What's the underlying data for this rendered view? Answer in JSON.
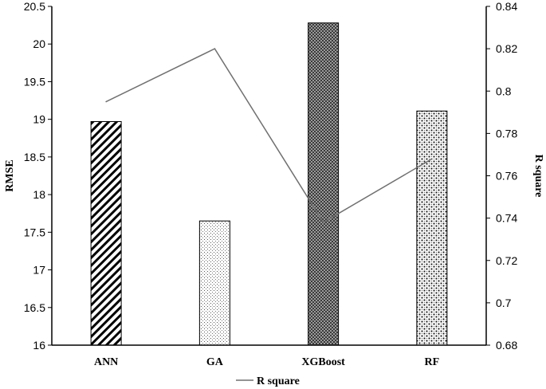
{
  "chart_data": {
    "type": "bar",
    "categories": [
      "ANN",
      "GA",
      "XGBoost",
      "RF"
    ],
    "series": [
      {
        "axis": "left",
        "type": "bar",
        "values": [
          18.97,
          17.65,
          20.28,
          19.11
        ]
      },
      {
        "name": "R square",
        "axis": "right",
        "type": "line",
        "values": [
          0.795,
          0.82,
          0.738,
          0.768
        ]
      }
    ],
    "ylabel": "RMSE",
    "y2label": "R square",
    "ylim": [
      16,
      20.5
    ],
    "y2lim": [
      0.68,
      0.84
    ],
    "yticks": [
      "16",
      "16.5",
      "17",
      "17.5",
      "18",
      "18.5",
      "19",
      "19.5",
      "20",
      "20.5"
    ],
    "y2ticks": [
      "0.68",
      "0.7",
      "0.72",
      "0.74",
      "0.76",
      "0.78",
      "0.8",
      "0.82",
      "0.84"
    ],
    "legend": {
      "position": "bottom",
      "entries": [
        "R square"
      ]
    },
    "bar_patterns": [
      "diagonal-stripes",
      "fine-dots",
      "checker",
      "speckle"
    ],
    "colors": {
      "line": "#707070",
      "axis": "#000000",
      "bar_outline": "#000000"
    },
    "grid": false
  }
}
